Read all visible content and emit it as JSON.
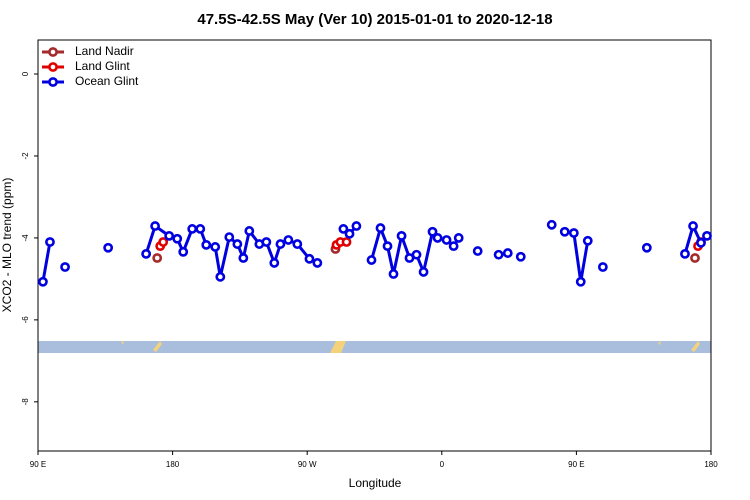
{
  "chart_data": {
    "type": "line",
    "title": "47.5S-42.5S May (Ver 10)   2015-01-01 to 2020-12-18",
    "x_label": "Longitude",
    "y_label": "XCO2 - MLO trend (ppm)",
    "xlim": [
      90,
      540
    ],
    "ylim": [
      -9.2,
      0.83
    ],
    "xticks": [
      {
        "value": 90,
        "label": "90 E"
      },
      {
        "value": 180,
        "label": "180"
      },
      {
        "value": 270,
        "label": "90 W"
      },
      {
        "value": 360,
        "label": "0"
      },
      {
        "value": 450,
        "label": "90 E"
      },
      {
        "value": 540,
        "label": "180"
      }
    ],
    "yticks": [
      0,
      -2,
      -4,
      -6,
      -8
    ],
    "legend": "top-left",
    "series": [
      {
        "name": "Land Nadir",
        "color": "#a52a2a",
        "x": [
          169.7,
          null,
          288.9,
          null,
          529.3
        ],
        "values": [
          -4.49,
          null,
          -4.27,
          null,
          -4.49
        ]
      },
      {
        "name": "Land Glint",
        "color": "#e00000",
        "x": [
          171.7,
          173.7,
          null,
          289.6,
          292.2,
          296.3,
          null,
          531.3,
          533.3
        ],
        "values": [
          -4.2,
          -4.1,
          null,
          -4.17,
          -4.1,
          -4.1,
          null,
          -4.2,
          -4.1
        ]
      },
      {
        "name": "Ocean Glint",
        "color": "#0000e0",
        "x": [
          93.3,
          98.0,
          null,
          108.1,
          null,
          136.9,
          null,
          162.3,
          168.3,
          177.7,
          183.1,
          187.1,
          193.1,
          198.5,
          202.5,
          208.5,
          211.9,
          217.9,
          223.3,
          227.3,
          231.3,
          238.0,
          242.7,
          248.0,
          252.1,
          257.4,
          263.4,
          271.5,
          276.8,
          null,
          294.2,
          298.3,
          302.9,
          null,
          313.0,
          319.0,
          323.7,
          327.7,
          333.1,
          338.4,
          343.1,
          347.8,
          353.8,
          357.2,
          363.2,
          367.9,
          371.3,
          null,
          384.0,
          null,
          398.0,
          404.1,
          null,
          412.8,
          null,
          433.5,
          null,
          442.2,
          448.3,
          452.9,
          457.6,
          null,
          467.7,
          null,
          497.1,
          null,
          522.6,
          528.0,
          533.3,
          537.3
        ],
        "values": [
          -5.07,
          -4.1,
          null,
          -4.71,
          null,
          -4.24,
          null,
          -4.39,
          -3.71,
          -3.95,
          -4.02,
          -4.34,
          -3.78,
          -3.78,
          -4.17,
          -4.22,
          -4.95,
          -3.98,
          -4.15,
          -4.49,
          -3.83,
          -4.15,
          -4.1,
          -4.61,
          -4.15,
          -4.05,
          -4.15,
          -4.51,
          -4.61,
          null,
          -3.78,
          -3.9,
          -3.71,
          null,
          -4.54,
          -3.76,
          -4.2,
          -4.88,
          -3.95,
          -4.49,
          -4.41,
          -4.83,
          -3.85,
          -4.0,
          -4.05,
          -4.2,
          -4.0,
          null,
          -4.32,
          null,
          -4.41,
          -4.37,
          null,
          -4.46,
          null,
          -3.68,
          null,
          -3.85,
          -3.88,
          -5.07,
          -4.07,
          null,
          -4.71,
          null,
          -4.24,
          null,
          -4.39,
          -3.71,
          -4.12,
          -3.95
        ]
      }
    ]
  }
}
